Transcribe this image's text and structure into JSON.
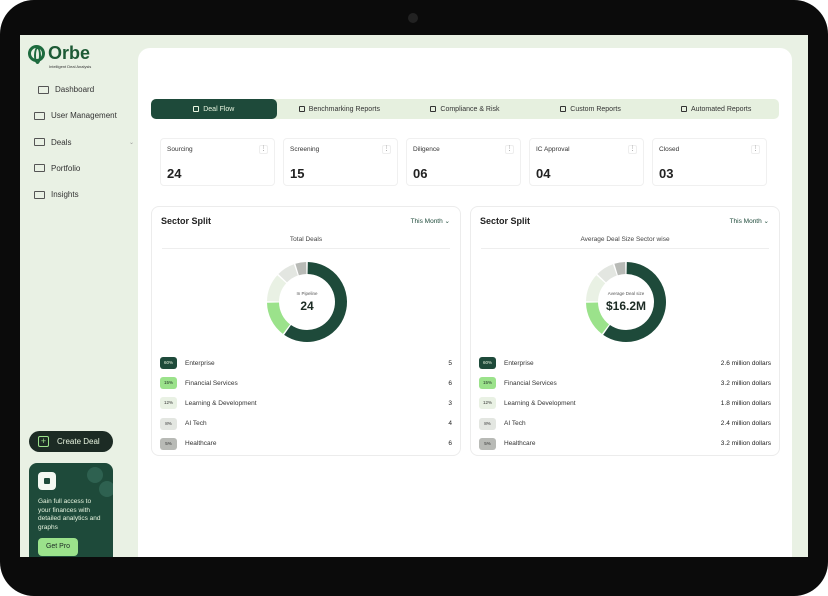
{
  "app": {
    "brand": "Orbe",
    "tagline": "Intelligent Deal Analysis"
  },
  "sidebar": {
    "items": [
      {
        "label": "Dashboard",
        "icon": "grid-icon"
      },
      {
        "label": "User Management",
        "icon": "users-icon"
      },
      {
        "label": "Deals",
        "icon": "deals-icon",
        "has_chevron": true
      },
      {
        "label": "Portfolio",
        "icon": "mail-icon"
      },
      {
        "label": "Insights",
        "icon": "insights-icon"
      }
    ],
    "create_label": "Create Deal",
    "promo": {
      "text": "Gain full access to your finances with detailed analytics and graphs",
      "button": "Get Pro"
    }
  },
  "tabs": [
    {
      "label": "Deal Flow",
      "active": true
    },
    {
      "label": "Benchmarking Reports"
    },
    {
      "label": "Compliance & Risk"
    },
    {
      "label": "Custom Reports"
    },
    {
      "label": "Automated Reports"
    }
  ],
  "kpis": [
    {
      "label": "Sourcing",
      "value": "24"
    },
    {
      "label": "Screening",
      "value": "15"
    },
    {
      "label": "Diligence",
      "value": "06"
    },
    {
      "label": "IC Approval",
      "value": "04"
    },
    {
      "label": "Closed",
      "value": "03"
    }
  ],
  "colors": {
    "dark": "#1e4a3a",
    "green": "#9be28b",
    "pale": "#e9f1e4",
    "light": "#e3e6e1",
    "grey": "#b8bab6"
  },
  "chart_data": [
    {
      "type": "pie",
      "title": "Sector Split",
      "period": "This Month",
      "subtitle": "Total Deals",
      "center_label": "In Pipeline",
      "center_value": "24",
      "categories": [
        "Enterprise",
        "Financial Services",
        "Learning & Development",
        "AI Tech",
        "Healthcare"
      ],
      "percents": [
        "60%",
        "15%",
        "12%",
        "8%",
        "5%"
      ],
      "values": [
        60,
        15,
        12,
        8,
        5
      ],
      "row_values": [
        "5",
        "6",
        "3",
        "4",
        "6"
      ]
    },
    {
      "type": "pie",
      "title": "Sector Split",
      "period": "This Month",
      "subtitle": "Average Deal Size Sector wise",
      "center_label": "Average Deal size",
      "center_value": "$16.2M",
      "categories": [
        "Enterprise",
        "Financial Services",
        "Learning & Development",
        "AI Tech",
        "Healthcare"
      ],
      "percents": [
        "60%",
        "15%",
        "12%",
        "8%",
        "5%"
      ],
      "values": [
        60,
        15,
        12,
        8,
        5
      ],
      "row_values": [
        "2.6 million dollars",
        "3.2 million dollars",
        "1.8 million dollars",
        "2.4 million dollars",
        "3.2 million dollars"
      ]
    }
  ]
}
